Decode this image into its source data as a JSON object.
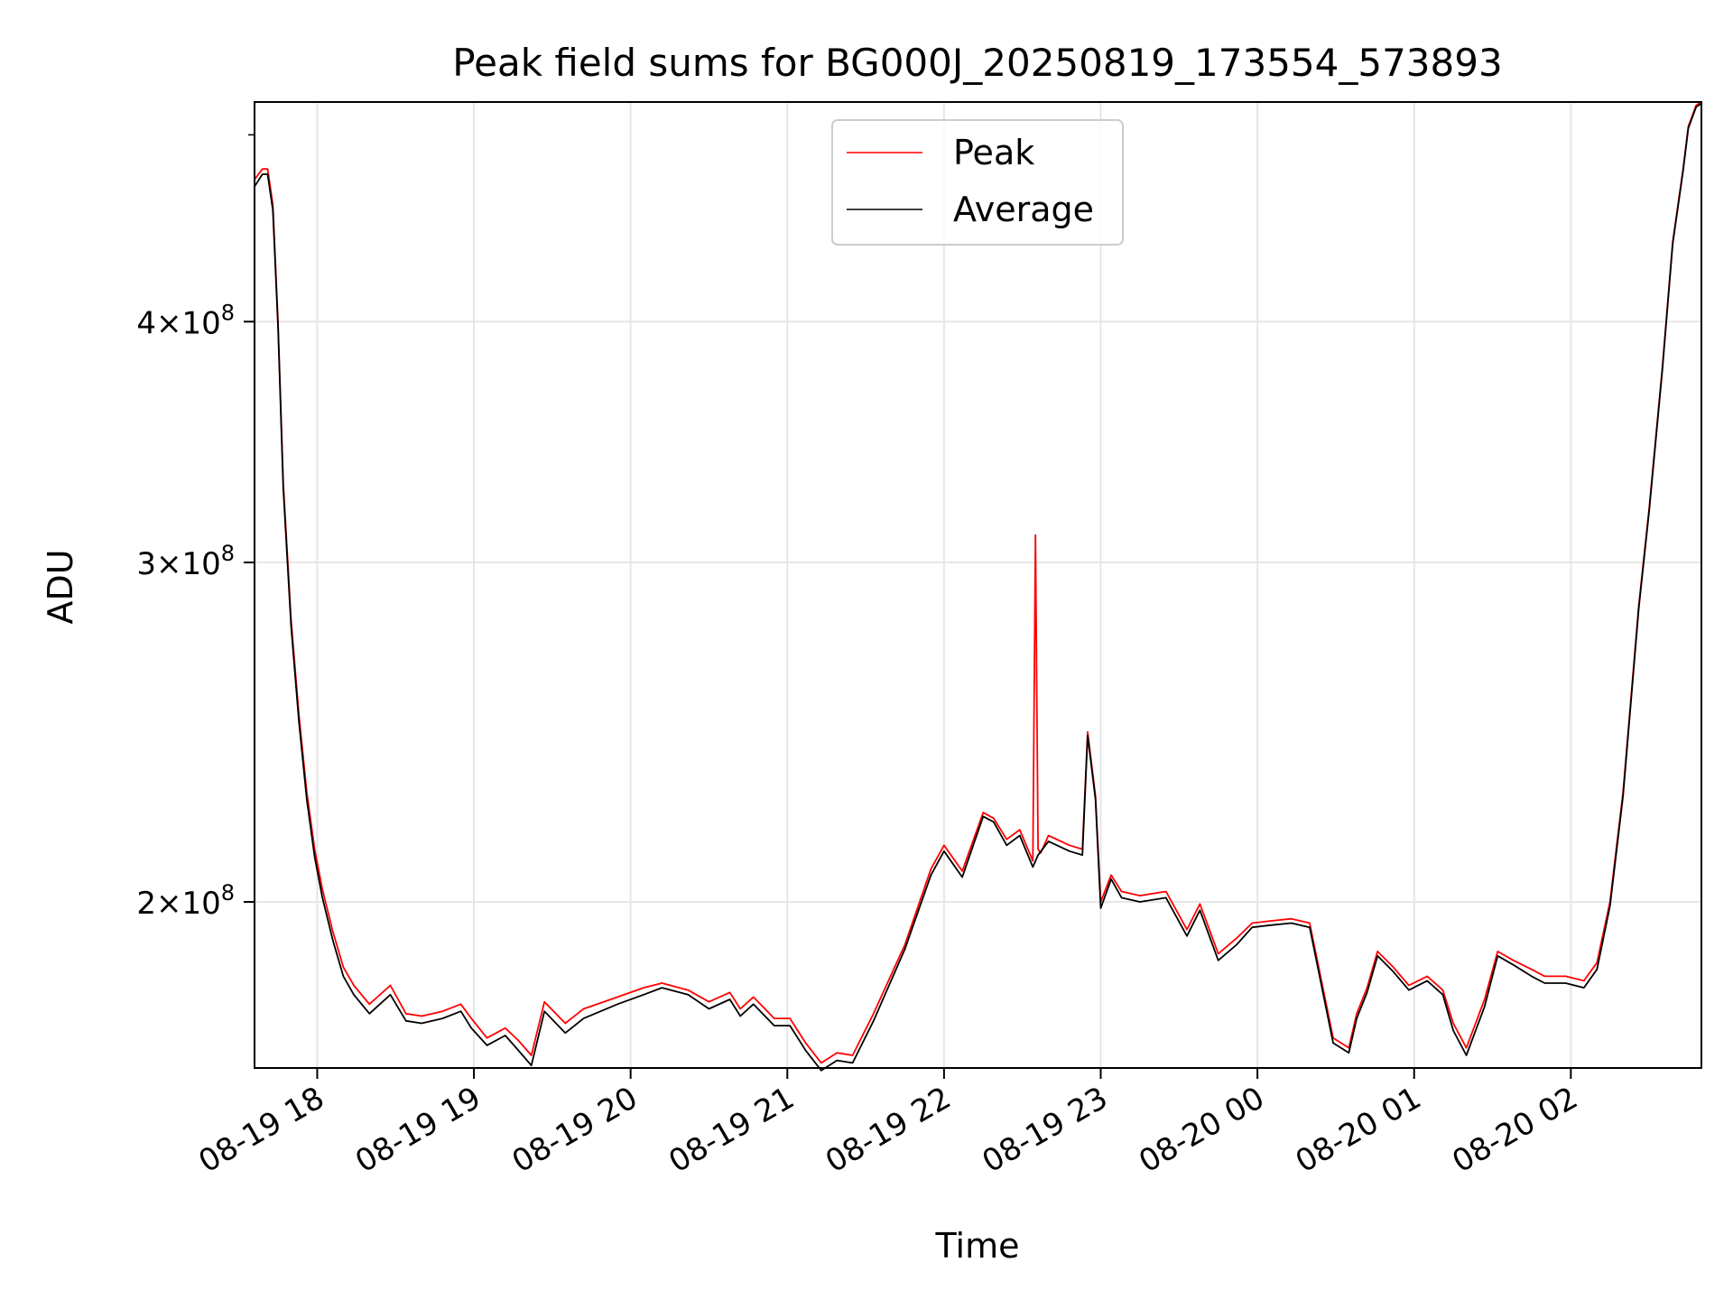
{
  "chart_data": {
    "type": "line",
    "title": "Peak field sums for BG000J_20250819_173554_573893",
    "xlabel": "Time",
    "ylabel": "ADU",
    "y_scale": "log",
    "grid": true,
    "legend_position": "top-center",
    "xlim": [
      "2025-08-19 17:36",
      "2025-08-20 02:50"
    ],
    "ylim": [
      164000000,
      520000000
    ],
    "x_ticks": [
      {
        "value": "2025-08-19 18:00",
        "label": "08-19 18"
      },
      {
        "value": "2025-08-19 19:00",
        "label": "08-19 19"
      },
      {
        "value": "2025-08-19 20:00",
        "label": "08-19 20"
      },
      {
        "value": "2025-08-19 21:00",
        "label": "08-19 21"
      },
      {
        "value": "2025-08-19 22:00",
        "label": "08-19 22"
      },
      {
        "value": "2025-08-19 23:00",
        "label": "08-19 23"
      },
      {
        "value": "2025-08-20 00:00",
        "label": "08-20 00"
      },
      {
        "value": "2025-08-20 01:00",
        "label": "08-20 01"
      },
      {
        "value": "2025-08-20 02:00",
        "label": "08-20 02"
      }
    ],
    "y_ticks": [
      {
        "value": 200000000,
        "base": "2",
        "exp": "8"
      },
      {
        "value": 300000000,
        "base": "3",
        "exp": "8"
      },
      {
        "value": 400000000,
        "base": "4",
        "exp": "8"
      }
    ],
    "series": [
      {
        "name": "Peak",
        "color": "#ff0000",
        "x": [
          "2025-08-19 17:36",
          "2025-08-19 17:39",
          "2025-08-19 17:41",
          "2025-08-19 17:43",
          "2025-08-19 17:45",
          "2025-08-19 17:47",
          "2025-08-19 17:50",
          "2025-08-19 17:53",
          "2025-08-19 17:56",
          "2025-08-19 17:59",
          "2025-08-19 18:02",
          "2025-08-19 18:06",
          "2025-08-19 18:10",
          "2025-08-19 18:14",
          "2025-08-19 18:20",
          "2025-08-19 18:28",
          "2025-08-19 18:34",
          "2025-08-19 18:40",
          "2025-08-19 18:48",
          "2025-08-19 18:55",
          "2025-08-19 18:59",
          "2025-08-19 19:05",
          "2025-08-19 19:12",
          "2025-08-19 19:17",
          "2025-08-19 19:22",
          "2025-08-19 19:27",
          "2025-08-19 19:35",
          "2025-08-19 19:42",
          "2025-08-19 19:55",
          "2025-08-19 20:05",
          "2025-08-19 20:12",
          "2025-08-19 20:22",
          "2025-08-19 20:30",
          "2025-08-19 20:38",
          "2025-08-19 20:42",
          "2025-08-19 20:47",
          "2025-08-19 20:55",
          "2025-08-19 21:01",
          "2025-08-19 21:07",
          "2025-08-19 21:13",
          "2025-08-19 21:19",
          "2025-08-19 21:25",
          "2025-08-19 21:33",
          "2025-08-19 21:45",
          "2025-08-19 21:55",
          "2025-08-19 22:00",
          "2025-08-19 22:07",
          "2025-08-19 22:15",
          "2025-08-19 22:19",
          "2025-08-19 22:24",
          "2025-08-19 22:29",
          "2025-08-19 22:34",
          "2025-08-19 22:35",
          "2025-08-19 22:36",
          "2025-08-19 22:37",
          "2025-08-19 22:40",
          "2025-08-19 22:48",
          "2025-08-19 22:53",
          "2025-08-19 22:55",
          "2025-08-19 22:58",
          "2025-08-19 23:00",
          "2025-08-19 23:04",
          "2025-08-19 23:08",
          "2025-08-19 23:15",
          "2025-08-19 23:25",
          "2025-08-19 23:33",
          "2025-08-19 23:38",
          "2025-08-19 23:45",
          "2025-08-19 23:52",
          "2025-08-19 23:58",
          "2025-08-20 00:05",
          "2025-08-20 00:13",
          "2025-08-20 00:20",
          "2025-08-20 00:29",
          "2025-08-20 00:35",
          "2025-08-20 00:38",
          "2025-08-20 00:42",
          "2025-08-20 00:46",
          "2025-08-20 00:52",
          "2025-08-20 00:58",
          "2025-08-20 01:05",
          "2025-08-20 01:11",
          "2025-08-20 01:15",
          "2025-08-20 01:20",
          "2025-08-20 01:27",
          "2025-08-20 01:32",
          "2025-08-20 01:38",
          "2025-08-20 01:45",
          "2025-08-20 01:50",
          "2025-08-20 01:58",
          "2025-08-20 02:05",
          "2025-08-20 02:10",
          "2025-08-20 02:15",
          "2025-08-20 02:20",
          "2025-08-20 02:26",
          "2025-08-20 02:30",
          "2025-08-20 02:35",
          "2025-08-20 02:39",
          "2025-08-20 02:43",
          "2025-08-20 02:45",
          "2025-08-20 02:48",
          "2025-08-20 02:50"
        ],
        "y": [
          474000000,
          480000000,
          480000000,
          460000000,
          400000000,
          330000000,
          280000000,
          250000000,
          228000000,
          213000000,
          203000000,
          193000000,
          185000000,
          181000000,
          177000000,
          181000000,
          175000000,
          174500000,
          175500000,
          177000000,
          174000000,
          170000000,
          172000000,
          169500000,
          166500000,
          177500000,
          173000000,
          176000000,
          178500000,
          180500000,
          181500000,
          180000000,
          177500000,
          179500000,
          176000000,
          178500000,
          174000000,
          174000000,
          169000000,
          165000000,
          167000000,
          166500000,
          175000000,
          190000000,
          208000000,
          214000000,
          207500000,
          222500000,
          221000000,
          215500000,
          218000000,
          210000000,
          310000000,
          213000000,
          212000000,
          216500000,
          214000000,
          213000000,
          245000000,
          227000000,
          200000000,
          206500000,
          202500000,
          201500000,
          202500000,
          193500000,
          199500000,
          188000000,
          191500000,
          195000000,
          195500000,
          196000000,
          195000000,
          170000000,
          168000000,
          175000000,
          180500000,
          188500000,
          185000000,
          181000000,
          183000000,
          180000000,
          173000000,
          168000000,
          178000000,
          188500000,
          186500000,
          184500000,
          183000000,
          183000000,
          182000000,
          186000000,
          200000000,
          228000000,
          285000000,
          320000000,
          378000000,
          440000000,
          480000000,
          505000000,
          518000000,
          520000000
        ]
      },
      {
        "name": "Average",
        "color": "#000000",
        "x": [
          "2025-08-19 17:36",
          "2025-08-19 17:39",
          "2025-08-19 17:41",
          "2025-08-19 17:43",
          "2025-08-19 17:45",
          "2025-08-19 17:47",
          "2025-08-19 17:50",
          "2025-08-19 17:53",
          "2025-08-19 17:56",
          "2025-08-19 17:59",
          "2025-08-19 18:02",
          "2025-08-19 18:06",
          "2025-08-19 18:10",
          "2025-08-19 18:14",
          "2025-08-19 18:20",
          "2025-08-19 18:28",
          "2025-08-19 18:34",
          "2025-08-19 18:40",
          "2025-08-19 18:48",
          "2025-08-19 18:55",
          "2025-08-19 18:59",
          "2025-08-19 19:05",
          "2025-08-19 19:12",
          "2025-08-19 19:17",
          "2025-08-19 19:22",
          "2025-08-19 19:27",
          "2025-08-19 19:35",
          "2025-08-19 19:42",
          "2025-08-19 19:55",
          "2025-08-19 20:05",
          "2025-08-19 20:12",
          "2025-08-19 20:22",
          "2025-08-19 20:30",
          "2025-08-19 20:38",
          "2025-08-19 20:42",
          "2025-08-19 20:47",
          "2025-08-19 20:55",
          "2025-08-19 21:01",
          "2025-08-19 21:07",
          "2025-08-19 21:13",
          "2025-08-19 21:19",
          "2025-08-19 21:25",
          "2025-08-19 21:33",
          "2025-08-19 21:45",
          "2025-08-19 21:55",
          "2025-08-19 22:00",
          "2025-08-19 22:07",
          "2025-08-19 22:15",
          "2025-08-19 22:19",
          "2025-08-19 22:24",
          "2025-08-19 22:29",
          "2025-08-19 22:34",
          "2025-08-19 22:36",
          "2025-08-19 22:40",
          "2025-08-19 22:48",
          "2025-08-19 22:53",
          "2025-08-19 22:55",
          "2025-08-19 22:58",
          "2025-08-19 23:00",
          "2025-08-19 23:04",
          "2025-08-19 23:08",
          "2025-08-19 23:15",
          "2025-08-19 23:25",
          "2025-08-19 23:33",
          "2025-08-19 23:38",
          "2025-08-19 23:45",
          "2025-08-19 23:52",
          "2025-08-19 23:58",
          "2025-08-20 00:05",
          "2025-08-20 00:13",
          "2025-08-20 00:20",
          "2025-08-20 00:29",
          "2025-08-20 00:35",
          "2025-08-20 00:38",
          "2025-08-20 00:42",
          "2025-08-20 00:46",
          "2025-08-20 00:52",
          "2025-08-20 00:58",
          "2025-08-20 01:05",
          "2025-08-20 01:11",
          "2025-08-20 01:15",
          "2025-08-20 01:20",
          "2025-08-20 01:27",
          "2025-08-20 01:32",
          "2025-08-20 01:38",
          "2025-08-20 01:45",
          "2025-08-20 01:50",
          "2025-08-20 01:58",
          "2025-08-20 02:05",
          "2025-08-20 02:10",
          "2025-08-20 02:15",
          "2025-08-20 02:20",
          "2025-08-20 02:26",
          "2025-08-20 02:30",
          "2025-08-20 02:35",
          "2025-08-20 02:39",
          "2025-08-20 02:43",
          "2025-08-20 02:45",
          "2025-08-20 02:48",
          "2025-08-20 02:50"
        ],
        "y": [
          470000000,
          477000000,
          477000000,
          457000000,
          398000000,
          328000000,
          278000000,
          248000000,
          226000000,
          211000000,
          201000000,
          191000000,
          183000000,
          179000000,
          175000000,
          179000000,
          173500000,
          173000000,
          174000000,
          175500000,
          172000000,
          168500000,
          170500000,
          167500000,
          164500000,
          175500000,
          171000000,
          174000000,
          177000000,
          179000000,
          180500000,
          179000000,
          176000000,
          178000000,
          174500000,
          177000000,
          172500000,
          172500000,
          167500000,
          163500000,
          165500000,
          165000000,
          173500000,
          189000000,
          206500000,
          212500000,
          206000000,
          221500000,
          220000000,
          214000000,
          216500000,
          208500000,
          211500000,
          215000000,
          212500000,
          211500000,
          244000000,
          226000000,
          198500000,
          205500000,
          201000000,
          200000000,
          201000000,
          192000000,
          198000000,
          186500000,
          190000000,
          194000000,
          194500000,
          195000000,
          194000000,
          169000000,
          167000000,
          174000000,
          179500000,
          187500000,
          184000000,
          180000000,
          182000000,
          179000000,
          171500000,
          166500000,
          176500000,
          187500000,
          185500000,
          183000000,
          181500000,
          181500000,
          180500000,
          184500000,
          199000000,
          227000000,
          284000000,
          319000000,
          377000000,
          439000000,
          479000000,
          504000000,
          517000000,
          519000000
        ]
      }
    ]
  }
}
